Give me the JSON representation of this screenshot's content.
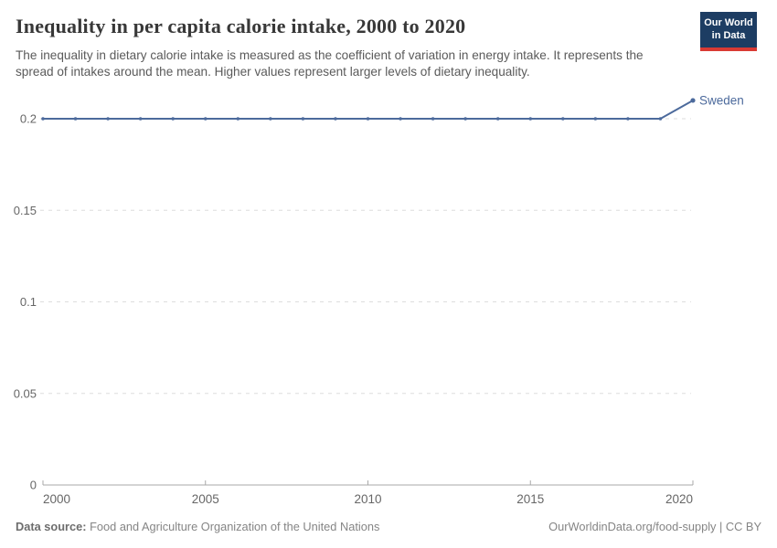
{
  "header": {
    "title": "Inequality in per capita calorie intake, 2000 to 2020",
    "subtitle": "The inequality in dietary calorie intake is measured as the coefficient of variation in energy intake. It represents the spread of intakes around the mean. Higher values represent larger levels of dietary inequality.",
    "logo": {
      "line1": "Our World",
      "line2": "in Data"
    }
  },
  "chart_data": {
    "type": "line",
    "title": "Inequality in per capita calorie intake, 2000 to 2020",
    "xlabel": "",
    "ylabel": "",
    "xlim": [
      2000,
      2020
    ],
    "ylim": [
      0,
      0.2
    ],
    "x_ticks": [
      2000,
      2005,
      2010,
      2015,
      2020
    ],
    "y_ticks": [
      0,
      0.05,
      0.1,
      0.15,
      0.2
    ],
    "grid": "horizontal-dashed",
    "legend_position": "end-of-line-label",
    "series": [
      {
        "name": "Sweden",
        "color": "#4c6a9c",
        "x": [
          2000,
          2001,
          2002,
          2003,
          2004,
          2005,
          2006,
          2007,
          2008,
          2009,
          2010,
          2011,
          2012,
          2013,
          2014,
          2015,
          2016,
          2017,
          2018,
          2019,
          2020
        ],
        "values": [
          0.2,
          0.2,
          0.2,
          0.2,
          0.2,
          0.2,
          0.2,
          0.2,
          0.2,
          0.2,
          0.2,
          0.2,
          0.2,
          0.2,
          0.2,
          0.2,
          0.2,
          0.2,
          0.2,
          0.2,
          0.21
        ]
      }
    ]
  },
  "footer": {
    "source_label": "Data source:",
    "source_value": "Food and Agriculture Organization of the United Nations",
    "attribution": "OurWorldinData.org/food-supply | CC BY"
  },
  "colors": {
    "grid": "#dddddd",
    "axis": "#a8a8a8",
    "tick_label": "#666666"
  }
}
